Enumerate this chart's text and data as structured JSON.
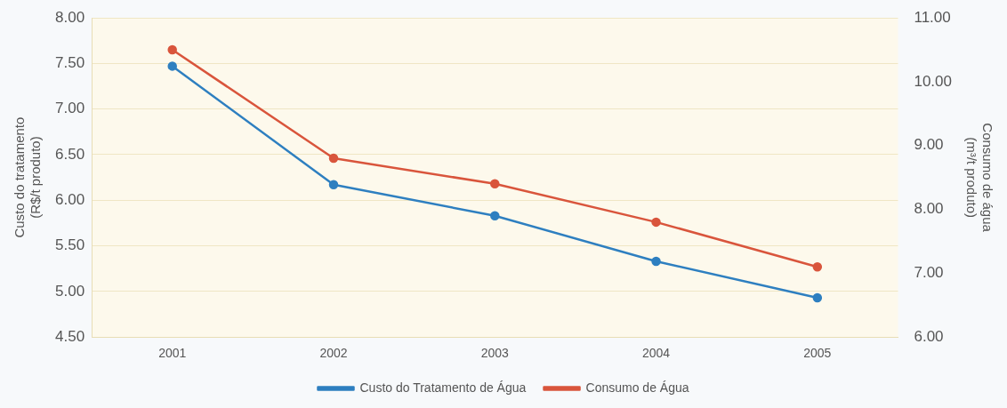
{
  "chart_data": {
    "type": "line",
    "categories": [
      "2001",
      "2002",
      "2003",
      "2004",
      "2005"
    ],
    "ylabel": "Custo do tratamento\n(R$/t produto)",
    "y2label": "Consumo de água\n(m³/t produto)",
    "ylim": [
      4.5,
      8
    ],
    "yticks": [
      {
        "value": 4.5,
        "label": "4.50"
      },
      {
        "value": 5,
        "label": "5.00"
      },
      {
        "value": 5.5,
        "label": "5.50"
      },
      {
        "value": 6,
        "label": "6.00"
      },
      {
        "value": 6.5,
        "label": "6.50"
      },
      {
        "value": 7,
        "label": "7.00"
      },
      {
        "value": 7.5,
        "label": "7.50"
      },
      {
        "value": 8,
        "label": "8.00"
      }
    ],
    "y2lim": [
      6,
      11
    ],
    "y2ticks": [
      {
        "value": 6,
        "label": "6.00"
      },
      {
        "value": 7,
        "label": "7.00"
      },
      {
        "value": 8,
        "label": "8.00"
      },
      {
        "value": 9,
        "label": "9.00"
      },
      {
        "value": 10,
        "label": "10.00"
      },
      {
        "value": 11,
        "label": "11.00"
      }
    ],
    "series": [
      {
        "name": "Custo do Tratamento de Água",
        "color": "#2e7fc0",
        "values": [
          7.47,
          6.17,
          5.83,
          5.33,
          4.93
        ]
      },
      {
        "name": "Consumo de Água",
        "color": "#d9553c",
        "axis": "y2",
        "values": [
          10.5,
          8.8,
          8.4,
          7.8,
          7.1
        ]
      }
    ],
    "grid": "y",
    "legend": "bottom",
    "marker": "circle",
    "line_style": "solid"
  }
}
